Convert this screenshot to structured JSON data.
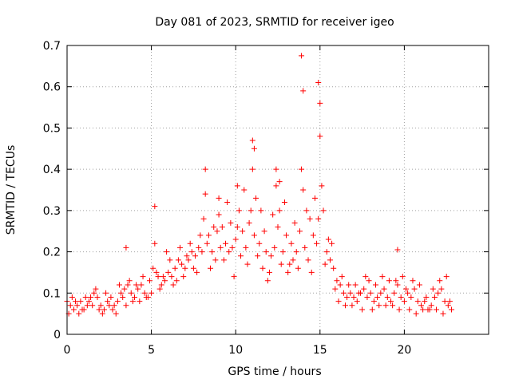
{
  "chart_data": {
    "type": "scatter",
    "title": "Day 081 of 2023, SRMTID for receiver igeo",
    "xlabel": "GPS time / hours",
    "ylabel": "SRMTID / TECUs",
    "xlim": [
      0,
      25
    ],
    "ylim": [
      0,
      0.7
    ],
    "grid": true,
    "marker": "plus",
    "color": "#ff0000",
    "xticks": [
      {
        "value": 0,
        "label": "0"
      },
      {
        "value": 5,
        "label": "5"
      },
      {
        "value": 10,
        "label": "10"
      },
      {
        "value": 15,
        "label": "15"
      },
      {
        "value": 20,
        "label": "20"
      }
    ],
    "yticks": [
      {
        "value": 0,
        "label": "0"
      },
      {
        "value": 0.1,
        "label": "0.1"
      },
      {
        "value": 0.2,
        "label": "0.2"
      },
      {
        "value": 0.3,
        "label": "0.3"
      },
      {
        "value": 0.4,
        "label": "0.4"
      },
      {
        "value": 0.5,
        "label": "0.5"
      },
      {
        "value": 0.6,
        "label": "0.6"
      },
      {
        "value": 0.7,
        "label": "0.7"
      }
    ],
    "series": [
      {
        "name": "SRMTID",
        "x": [
          0.0,
          0.2,
          0.4,
          0.6,
          0.8,
          1.0,
          1.2,
          1.4,
          1.6,
          1.8,
          2.0,
          2.2,
          2.4,
          2.6,
          2.8,
          3.0,
          3.2,
          3.4,
          3.6,
          3.8,
          4.0,
          4.2,
          4.4,
          4.6,
          4.8,
          5.0,
          5.2,
          5.4,
          5.6,
          5.8,
          6.0,
          6.2,
          6.4,
          6.6,
          6.8,
          7.0,
          7.2,
          7.4,
          7.6,
          7.8,
          8.0,
          8.2,
          8.4,
          8.6,
          8.8,
          9.0,
          9.2,
          9.4,
          9.6,
          9.8,
          10.0,
          10.2,
          10.4,
          10.6,
          10.8,
          11.0,
          11.2,
          11.4,
          11.6,
          11.8,
          12.0,
          12.2,
          12.4,
          12.6,
          12.8,
          13.0,
          13.2,
          13.4,
          13.6,
          13.8,
          14.0,
          14.2,
          14.4,
          14.6,
          14.8,
          15.0,
          15.2,
          15.4,
          15.6,
          15.8,
          16.0,
          16.2,
          16.4,
          16.6,
          16.8,
          17.0,
          17.2,
          17.4,
          17.6,
          17.8,
          18.0,
          18.2,
          18.4,
          18.6,
          18.8,
          19.0,
          19.2,
          19.4,
          19.6,
          19.8,
          20.0,
          20.2,
          20.4,
          20.6,
          20.8,
          21.0,
          21.2,
          21.4,
          21.6,
          21.8,
          22.0,
          22.2,
          22.4,
          22.6,
          22.8,
          0.1,
          0.3,
          0.5,
          0.7,
          0.9,
          1.1,
          1.3,
          1.5,
          1.7,
          1.9,
          2.1,
          2.3,
          2.5,
          2.7,
          2.9,
          3.1,
          3.3,
          3.5,
          3.7,
          3.9,
          4.1,
          4.3,
          4.5,
          4.7,
          4.9,
          5.1,
          5.3,
          5.5,
          5.7,
          5.9,
          6.1,
          6.3,
          6.5,
          6.7,
          6.9,
          7.1,
          7.3,
          7.5,
          7.7,
          7.9,
          8.1,
          8.3,
          8.5,
          8.7,
          8.9,
          9.1,
          9.3,
          9.5,
          9.7,
          9.9,
          10.1,
          10.3,
          10.5,
          10.7,
          10.9,
          11.1,
          11.3,
          11.5,
          11.7,
          11.9,
          12.1,
          12.3,
          12.5,
          12.7,
          12.9,
          13.1,
          13.3,
          13.5,
          13.7,
          13.9,
          14.1,
          14.3,
          14.5,
          14.7,
          14.9,
          15.1,
          15.3,
          15.5,
          15.7,
          15.9,
          16.1,
          16.3,
          16.5,
          16.7,
          16.9,
          17.1,
          17.3,
          17.5,
          17.7,
          17.9,
          18.1,
          18.3,
          18.5,
          18.7,
          18.9,
          19.1,
          19.3,
          19.5,
          19.7,
          19.9,
          20.1,
          20.3,
          20.5,
          20.7,
          20.9,
          21.1,
          21.3,
          21.5,
          21.7,
          21.9,
          22.1,
          22.3,
          22.5,
          22.7,
          5.2,
          8.2,
          9.0,
          11.0,
          11.1,
          13.9,
          14.0,
          14.9,
          15.0,
          12.4,
          12.6,
          10.1,
          3.5,
          19.6
        ],
        "y": [
          0.08,
          0.07,
          0.06,
          0.07,
          0.08,
          0.06,
          0.07,
          0.09,
          0.1,
          0.09,
          0.07,
          0.06,
          0.08,
          0.09,
          0.07,
          0.08,
          0.1,
          0.11,
          0.12,
          0.1,
          0.09,
          0.11,
          0.12,
          0.1,
          0.09,
          0.1,
          0.22,
          0.14,
          0.12,
          0.13,
          0.15,
          0.14,
          0.16,
          0.18,
          0.17,
          0.16,
          0.18,
          0.2,
          0.19,
          0.21,
          0.2,
          0.34,
          0.24,
          0.2,
          0.18,
          0.29,
          0.26,
          0.22,
          0.2,
          0.21,
          0.23,
          0.3,
          0.25,
          0.21,
          0.27,
          0.4,
          0.33,
          0.22,
          0.16,
          0.2,
          0.15,
          0.29,
          0.36,
          0.3,
          0.2,
          0.24,
          0.17,
          0.18,
          0.2,
          0.25,
          0.35,
          0.3,
          0.28,
          0.24,
          0.22,
          0.48,
          0.3,
          0.2,
          0.18,
          0.16,
          0.13,
          0.12,
          0.1,
          0.09,
          0.1,
          0.09,
          0.08,
          0.1,
          0.11,
          0.09,
          0.1,
          0.08,
          0.09,
          0.1,
          0.11,
          0.09,
          0.08,
          0.1,
          0.12,
          0.09,
          0.08,
          0.1,
          0.09,
          0.11,
          0.08,
          0.07,
          0.08,
          0.06,
          0.07,
          0.09,
          0.1,
          0.11,
          0.08,
          0.07,
          0.06,
          0.05,
          0.09,
          0.08,
          0.05,
          0.06,
          0.09,
          0.08,
          0.07,
          0.11,
          0.06,
          0.05,
          0.1,
          0.07,
          0.06,
          0.05,
          0.12,
          0.09,
          0.07,
          0.13,
          0.08,
          0.12,
          0.08,
          0.14,
          0.09,
          0.13,
          0.16,
          0.15,
          0.11,
          0.14,
          0.2,
          0.18,
          0.12,
          0.13,
          0.21,
          0.14,
          0.19,
          0.22,
          0.16,
          0.15,
          0.24,
          0.28,
          0.22,
          0.16,
          0.26,
          0.25,
          0.21,
          0.18,
          0.32,
          0.27,
          0.14,
          0.26,
          0.19,
          0.35,
          0.17,
          0.3,
          0.24,
          0.19,
          0.3,
          0.25,
          0.13,
          0.19,
          0.21,
          0.26,
          0.17,
          0.32,
          0.15,
          0.22,
          0.27,
          0.16,
          0.4,
          0.21,
          0.18,
          0.15,
          0.33,
          0.28,
          0.36,
          0.17,
          0.23,
          0.22,
          0.11,
          0.08,
          0.14,
          0.07,
          0.12,
          0.07,
          0.12,
          0.1,
          0.06,
          0.14,
          0.13,
          0.06,
          0.12,
          0.07,
          0.14,
          0.07,
          0.13,
          0.07,
          0.13,
          0.06,
          0.14,
          0.11,
          0.06,
          0.13,
          0.05,
          0.12,
          0.06,
          0.09,
          0.06,
          0.11,
          0.06,
          0.13,
          0.05,
          0.14,
          0.08,
          0.31,
          0.4,
          0.33,
          0.47,
          0.45,
          0.675,
          0.59,
          0.61,
          0.56,
          0.4,
          0.37,
          0.36,
          0.21,
          0.205
        ]
      }
    ]
  }
}
